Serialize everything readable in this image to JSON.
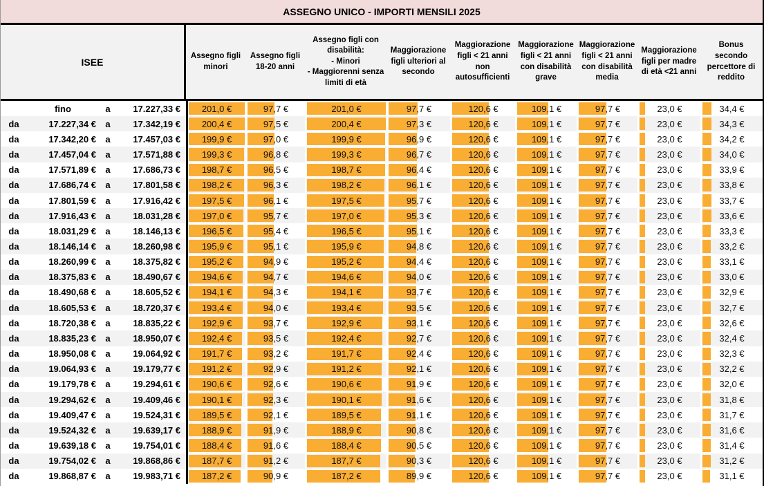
{
  "title": "ASSEGNO UNICO - IMPORTI MENSILI 2025",
  "currency_suffix": " €",
  "colors": {
    "title_background": "#F2DCDB",
    "header_background": "#F2F2F2",
    "row_stripe": "#F2F2F2",
    "data_bar": "#F9AD33",
    "border": "#000000"
  },
  "table": {
    "isee_header": "ISEE",
    "bar_scale_max": 201.0,
    "value_columns": [
      "Assegno figli minori",
      "Assegno figli 18-20 anni",
      "Assegno figli con disabilità:\n- Minori\n- Maggiorenni senza limiti di età",
      "Maggiorazione figli ulteriori al secondo",
      "Maggiorazione figli < 21 anni non autosufficienti",
      "Maggiorazione figli < 21 anni con disabilità grave",
      "Maggiorazione figli < 21 anni con disabilità media",
      "Maggiorazione figli per madre di età <21 anni",
      "Bonus secondo percettore di reddito"
    ],
    "rows": [
      {
        "da": "",
        "from": "fino",
        "a": "a",
        "to": "17.227,33 €",
        "values": [
          201.0,
          97.7,
          201.0,
          97.7,
          120.6,
          109.1,
          97.7,
          23.0,
          34.4
        ]
      },
      {
        "da": "da",
        "from": "17.227,34 €",
        "a": "a",
        "to": "17.342,19 €",
        "values": [
          200.4,
          97.5,
          200.4,
          97.3,
          120.6,
          109.1,
          97.7,
          23.0,
          34.3
        ]
      },
      {
        "da": "da",
        "from": "17.342,20 €",
        "a": "a",
        "to": "17.457,03 €",
        "values": [
          199.9,
          97.0,
          199.9,
          96.9,
          120.6,
          109.1,
          97.7,
          23.0,
          34.2
        ]
      },
      {
        "da": "da",
        "from": "17.457,04 €",
        "a": "a",
        "to": "17.571,88 €",
        "values": [
          199.3,
          96.8,
          199.3,
          96.7,
          120.6,
          109.1,
          97.7,
          23.0,
          34.0
        ]
      },
      {
        "da": "da",
        "from": "17.571,89 €",
        "a": "a",
        "to": "17.686,73 €",
        "values": [
          198.7,
          96.5,
          198.7,
          96.4,
          120.6,
          109.1,
          97.7,
          23.0,
          33.9
        ]
      },
      {
        "da": "da",
        "from": "17.686,74 €",
        "a": "a",
        "to": "17.801,58 €",
        "values": [
          198.2,
          96.3,
          198.2,
          96.1,
          120.6,
          109.1,
          97.7,
          23.0,
          33.8
        ]
      },
      {
        "da": "da",
        "from": "17.801,59 €",
        "a": "a",
        "to": "17.916,42 €",
        "values": [
          197.5,
          96.1,
          197.5,
          95.7,
          120.6,
          109.1,
          97.7,
          23.0,
          33.7
        ]
      },
      {
        "da": "da",
        "from": "17.916,43 €",
        "a": "a",
        "to": "18.031,28 €",
        "values": [
          197.0,
          95.7,
          197.0,
          95.3,
          120.6,
          109.1,
          97.7,
          23.0,
          33.6
        ]
      },
      {
        "da": "da",
        "from": "18.031,29 €",
        "a": "a",
        "to": "18.146,13 €",
        "values": [
          196.5,
          95.4,
          196.5,
          95.1,
          120.6,
          109.1,
          97.7,
          23.0,
          33.3
        ]
      },
      {
        "da": "da",
        "from": "18.146,14 €",
        "a": "a",
        "to": "18.260,98 €",
        "values": [
          195.9,
          95.1,
          195.9,
          94.8,
          120.6,
          109.1,
          97.7,
          23.0,
          33.2
        ]
      },
      {
        "da": "da",
        "from": "18.260,99 €",
        "a": "a",
        "to": "18.375,82 €",
        "values": [
          195.2,
          94.9,
          195.2,
          94.4,
          120.6,
          109.1,
          97.7,
          23.0,
          33.1
        ]
      },
      {
        "da": "da",
        "from": "18.375,83 €",
        "a": "a",
        "to": "18.490,67 €",
        "values": [
          194.6,
          94.7,
          194.6,
          94.0,
          120.6,
          109.1,
          97.7,
          23.0,
          33.0
        ]
      },
      {
        "da": "da",
        "from": "18.490,68 €",
        "a": "a",
        "to": "18.605,52 €",
        "values": [
          194.1,
          94.3,
          194.1,
          93.7,
          120.6,
          109.1,
          97.7,
          23.0,
          32.9
        ]
      },
      {
        "da": "da",
        "from": "18.605,53 €",
        "a": "a",
        "to": "18.720,37 €",
        "values": [
          193.4,
          94.0,
          193.4,
          93.5,
          120.6,
          109.1,
          97.7,
          23.0,
          32.7
        ]
      },
      {
        "da": "da",
        "from": "18.720,38 €",
        "a": "a",
        "to": "18.835,22 €",
        "values": [
          192.9,
          93.7,
          192.9,
          93.1,
          120.6,
          109.1,
          97.7,
          23.0,
          32.6
        ]
      },
      {
        "da": "da",
        "from": "18.835,23 €",
        "a": "a",
        "to": "18.950,07 €",
        "values": [
          192.4,
          93.5,
          192.4,
          92.7,
          120.6,
          109.1,
          97.7,
          23.0,
          32.4
        ]
      },
      {
        "da": "da",
        "from": "18.950,08 €",
        "a": "a",
        "to": "19.064,92 €",
        "values": [
          191.7,
          93.2,
          191.7,
          92.4,
          120.6,
          109.1,
          97.7,
          23.0,
          32.3
        ]
      },
      {
        "da": "da",
        "from": "19.064,93 €",
        "a": "a",
        "to": "19.179,77 €",
        "values": [
          191.2,
          92.9,
          191.2,
          92.1,
          120.6,
          109.1,
          97.7,
          23.0,
          32.2
        ]
      },
      {
        "da": "da",
        "from": "19.179,78 €",
        "a": "a",
        "to": "19.294,61 €",
        "values": [
          190.6,
          92.6,
          190.6,
          91.9,
          120.6,
          109.1,
          97.7,
          23.0,
          32.0
        ]
      },
      {
        "da": "da",
        "from": "19.294,62 €",
        "a": "a",
        "to": "19.409,46 €",
        "values": [
          190.1,
          92.3,
          190.1,
          91.6,
          120.6,
          109.1,
          97.7,
          23.0,
          31.8
        ]
      },
      {
        "da": "da",
        "from": "19.409,47 €",
        "a": "a",
        "to": "19.524,31 €",
        "values": [
          189.5,
          92.1,
          189.5,
          91.1,
          120.6,
          109.1,
          97.7,
          23.0,
          31.7
        ]
      },
      {
        "da": "da",
        "from": "19.524,32 €",
        "a": "a",
        "to": "19.639,17 €",
        "values": [
          188.9,
          91.9,
          188.9,
          90.8,
          120.6,
          109.1,
          97.7,
          23.0,
          31.6
        ]
      },
      {
        "da": "da",
        "from": "19.639,18 €",
        "a": "a",
        "to": "19.754,01 €",
        "values": [
          188.4,
          91.6,
          188.4,
          90.5,
          120.6,
          109.1,
          97.7,
          23.0,
          31.4
        ]
      },
      {
        "da": "da",
        "from": "19.754,02 €",
        "a": "a",
        "to": "19.868,86 €",
        "values": [
          187.7,
          91.2,
          187.7,
          90.3,
          120.6,
          109.1,
          97.7,
          23.0,
          31.2
        ]
      },
      {
        "da": "da",
        "from": "19.868,87 €",
        "a": "a",
        "to": "19.983,71 €",
        "values": [
          187.2,
          90.9,
          187.2,
          89.9,
          120.6,
          109.1,
          97.7,
          23.0,
          31.1
        ]
      }
    ]
  }
}
